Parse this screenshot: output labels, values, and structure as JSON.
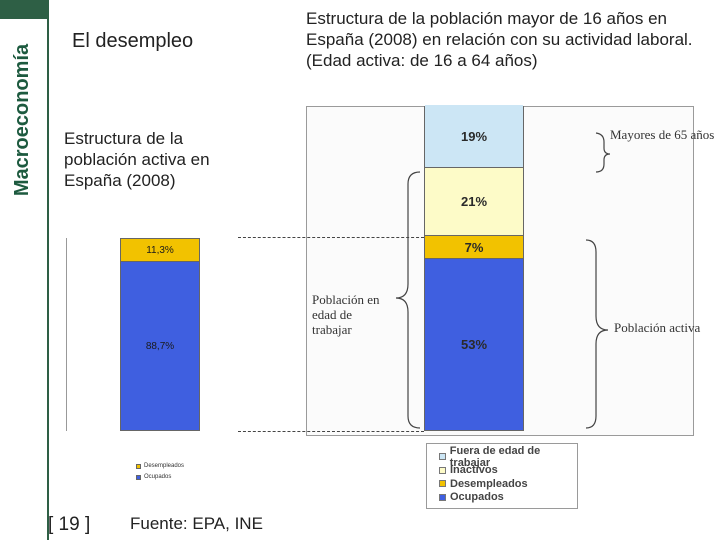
{
  "sidebar": {
    "title": "Macroeconomía"
  },
  "section_title": "El desempleo",
  "main_title": "Estructura de la población mayor de 16 años en España (2008) en relación con su actividad laboral. (Edad activa: de 16 a 64 años)",
  "left_caption": "Estructura de la población activa en España (2008)",
  "annotations": {
    "mayores": "Mayores de 65 años",
    "pet": "Población en edad de trabajar",
    "activa": "Población activa"
  },
  "chart_data": [
    {
      "type": "bar",
      "stacked": true,
      "categories": [
        ""
      ],
      "series": [
        {
          "name": "Ocupados",
          "values": [
            53
          ],
          "label": "53%",
          "color": "#3f5fe0",
          "label_color": "#2a2a2a"
        },
        {
          "name": "Desempleados",
          "values": [
            7
          ],
          "label": "7%",
          "color": "#f2c200",
          "label_color": "#2a2a2a"
        },
        {
          "name": "Inactivos",
          "values": [
            21
          ],
          "label": "21%",
          "color": "#fdfbc8",
          "label_color": "#2a2a2a"
        },
        {
          "name": "Fuera de edad de trabajar",
          "values": [
            19
          ],
          "label": "19%",
          "color": "#cce6f5",
          "label_color": "#2a2a2a"
        }
      ],
      "legend": [
        "Fuera de edad de trabajar",
        "Inactivos",
        "Desempleados",
        "Ocupados"
      ],
      "legend_position": "bottom-right"
    },
    {
      "type": "bar",
      "stacked": true,
      "categories": [
        ""
      ],
      "series": [
        {
          "name": "Ocupados",
          "values": [
            88.7
          ],
          "label": "88,7%",
          "color": "#3f5fe0",
          "label_color": "#1a1a1a"
        },
        {
          "name": "Desempleados",
          "values": [
            11.3
          ],
          "label": "11,3%",
          "color": "#f2c200",
          "label_color": "#1a1a1a"
        }
      ],
      "legend": [
        "Desempleados",
        "Ocupados"
      ],
      "legend_position": "bottom"
    }
  ],
  "footer": {
    "page": "[ 19 ]",
    "source": "Fuente: EPA, INE"
  }
}
